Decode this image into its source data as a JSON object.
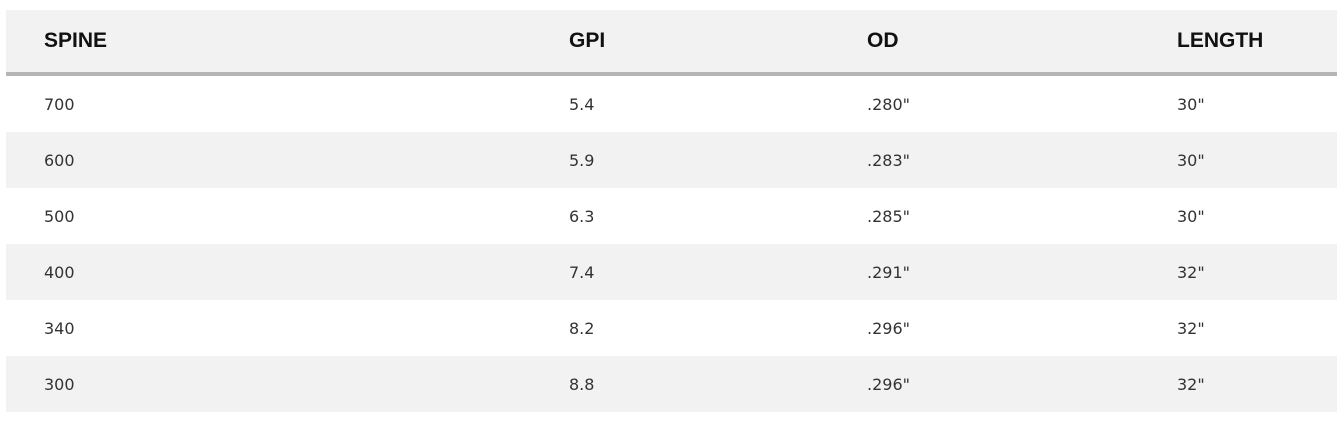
{
  "table": {
    "header": [
      "SPINE",
      "GPI",
      "OD",
      "LENGTH"
    ],
    "rows": [
      [
        "700",
        "5.4",
        ".280\"",
        "30\""
      ],
      [
        "600",
        "5.9",
        ".283\"",
        "30\""
      ],
      [
        "500",
        "6.3",
        ".285\"",
        "30\""
      ],
      [
        "400",
        "7.4",
        ".291\"",
        "32\""
      ],
      [
        "340",
        "8.2",
        ".296\"",
        "32\""
      ],
      [
        "300",
        "8.8",
        ".296\"",
        "32\""
      ]
    ]
  }
}
